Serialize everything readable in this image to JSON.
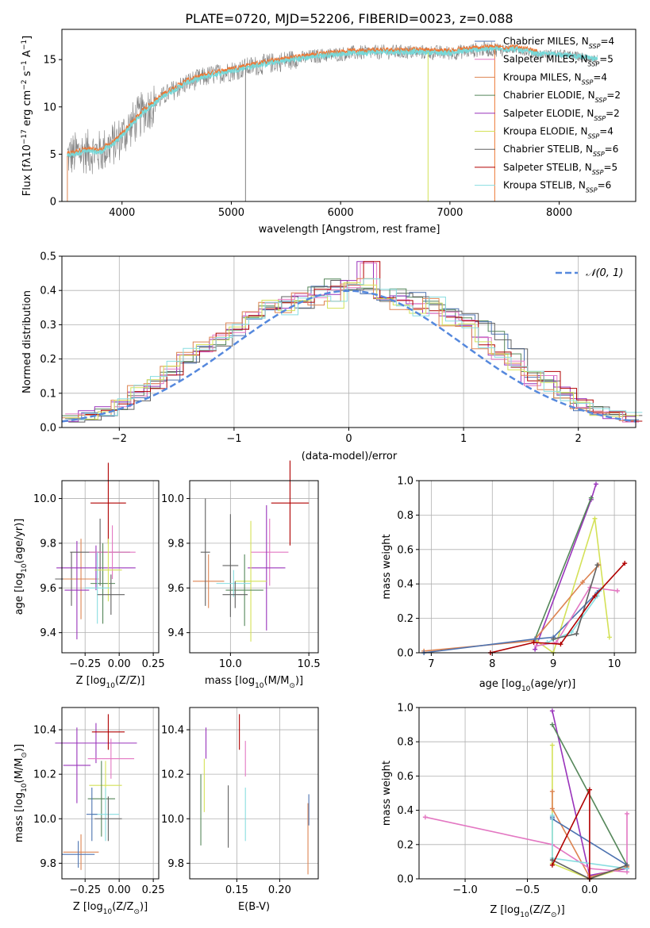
{
  "figure": {
    "title": "PLATE=0720, MJD=52206, FIBERID=0023, z=0.088"
  },
  "legend": [
    {
      "label": "Chabrier MILES, N",
      "sub": "SSP",
      "suffix": "=4",
      "color": "#4c72b0"
    },
    {
      "label": "Salpeter MILES, N",
      "sub": "SSP",
      "suffix": "=5",
      "color": "#e377c2"
    },
    {
      "label": "Kroupa MILES, N",
      "sub": "SSP",
      "suffix": "=4",
      "color": "#dd8452"
    },
    {
      "label": "Chabrier ELODIE, N",
      "sub": "SSP",
      "suffix": "=2",
      "color": "#55875a"
    },
    {
      "label": "Salpeter ELODIE, N",
      "sub": "SSP",
      "suffix": "=2",
      "color": "#9933bb"
    },
    {
      "label": "Kroupa ELODIE, N",
      "sub": "SSP",
      "suffix": "=4",
      "color": "#d4e157"
    },
    {
      "label": "Chabrier STELIB, N",
      "sub": "SSP",
      "suffix": "=6",
      "color": "#606060"
    },
    {
      "label": "Salpeter STELIB, N",
      "sub": "SSP",
      "suffix": "=5",
      "color": "#b00000"
    },
    {
      "label": "Kroupa STELIB, N",
      "sub": "SSP",
      "suffix": "=6",
      "color": "#88dde0"
    }
  ],
  "colors": {
    "spectrum": "#808080",
    "model": "#77d8d8",
    "model_orange": "#ee7733",
    "normal_curve": "#5588dd"
  },
  "chart_data": [
    {
      "id": "spectrum",
      "type": "line",
      "xlabel": "wavelength [Angstrom, rest frame]",
      "ylabel": "Flux [f",
      "xlim": [
        3450,
        8700
      ],
      "ylim": [
        0,
        18.2
      ],
      "xticks": [
        "4000",
        "5000",
        "6000",
        "7000",
        "8000"
      ],
      "yticks": [
        "0",
        "5",
        "10",
        "15"
      ],
      "continuum_knots": [
        [
          3500,
          4.8
        ],
        [
          3650,
          5.3
        ],
        [
          3800,
          5.2
        ],
        [
          3950,
          6.3
        ],
        [
          4050,
          7.6
        ],
        [
          4200,
          9.5
        ],
        [
          4400,
          11.3
        ],
        [
          4600,
          12.6
        ],
        [
          4800,
          13.3
        ],
        [
          5000,
          13.8
        ],
        [
          5200,
          14.3
        ],
        [
          5500,
          14.9
        ],
        [
          5800,
          15.4
        ],
        [
          6100,
          15.7
        ],
        [
          6400,
          15.8
        ],
        [
          6700,
          15.8
        ],
        [
          7000,
          15.7
        ],
        [
          7300,
          16.1
        ],
        [
          7600,
          16.1
        ],
        [
          7800,
          15.6
        ],
        [
          8000,
          15.6
        ],
        [
          8200,
          15.3
        ],
        [
          8350,
          15.0
        ]
      ]
    },
    {
      "id": "residual-histogram",
      "type": "histogram",
      "xlabel": "(data-model)/error",
      "ylabel": "Normed distribution",
      "xlim": [
        -2.5,
        2.5
      ],
      "ylim": [
        0,
        0.5
      ],
      "xticks": [
        "−2",
        "−1",
        "0",
        "1",
        "2"
      ],
      "yticks": [
        "0.0",
        "0.1",
        "0.2",
        "0.3",
        "0.4",
        "0.5"
      ],
      "legend": "𝒩(0, 1)",
      "bin_width": 0.1,
      "series": [
        {
          "values": [
            0.02,
            0.03,
            0.04,
            0.06,
            0.09,
            0.13,
            0.15,
            0.2,
            0.23,
            0.25,
            0.28,
            0.32,
            0.34,
            0.37,
            0.36,
            0.4,
            0.42,
            0.39,
            0.4,
            0.37,
            0.39,
            0.38,
            0.36,
            0.35,
            0.32,
            0.3,
            0.27,
            0.22,
            0.16,
            0.14,
            0.1,
            0.06,
            0.05,
            0.04,
            0.03
          ]
        },
        {
          "values": [
            0.03,
            0.04,
            0.05,
            0.07,
            0.1,
            0.12,
            0.16,
            0.2,
            0.21,
            0.27,
            0.29,
            0.33,
            0.35,
            0.36,
            0.38,
            0.39,
            0.4,
            0.42,
            0.48,
            0.38,
            0.37,
            0.35,
            0.34,
            0.33,
            0.3,
            0.25,
            0.21,
            0.19,
            0.13,
            0.15,
            0.11,
            0.07,
            0.04,
            0.04,
            0.02
          ]
        },
        {
          "values": [
            0.02,
            0.03,
            0.05,
            0.08,
            0.11,
            0.14,
            0.18,
            0.22,
            0.24,
            0.27,
            0.3,
            0.33,
            0.36,
            0.34,
            0.38,
            0.37,
            0.36,
            0.41,
            0.42,
            0.39,
            0.35,
            0.33,
            0.37,
            0.31,
            0.29,
            0.24,
            0.22,
            0.18,
            0.15,
            0.12,
            0.09,
            0.06,
            0.05,
            0.04,
            0.03
          ]
        }
      ]
    },
    {
      "id": "age-vs-Z",
      "type": "errorbar",
      "xlabel": "Z [log",
      "ylabel": "age  [log",
      "xlim": [
        -0.42,
        0.29
      ],
      "ylim": [
        9.31,
        10.08
      ],
      "xticks": [
        "−0.25",
        "0.00",
        "0.25"
      ],
      "yticks": [
        "9.4",
        "9.6",
        "9.8",
        "10.0"
      ],
      "points": [
        {
          "x": -0.35,
          "y": 9.64,
          "xerr": 0.12,
          "yerr": 0.12,
          "color": "#606060"
        },
        {
          "x": -0.28,
          "y": 9.64,
          "xerr": 0.13,
          "yerr": 0.18,
          "color": "#dd8452"
        },
        {
          "x": -0.31,
          "y": 9.59,
          "xerr": 0.09,
          "yerr": 0.22,
          "color": "#9933bb"
        },
        {
          "x": -0.17,
          "y": 9.69,
          "xerr": 0.29,
          "yerr": 0.1,
          "color": "#9933bb"
        },
        {
          "x": -0.08,
          "y": 9.98,
          "xerr": 0.13,
          "yerr": 0.18,
          "color": "#b00000"
        },
        {
          "x": -0.14,
          "y": 9.76,
          "xerr": 0.22,
          "yerr": 0.15,
          "color": "#606060"
        },
        {
          "x": -0.05,
          "y": 9.76,
          "xerr": 0.17,
          "yerr": 0.12,
          "color": "#e377c2"
        },
        {
          "x": -0.12,
          "y": 9.62,
          "xerr": 0.09,
          "yerr": 0.18,
          "color": "#55875a"
        },
        {
          "x": -0.08,
          "y": 9.68,
          "xerr": 0.1,
          "yerr": 0.14,
          "color": "#d4e157"
        },
        {
          "x": -0.16,
          "y": 9.6,
          "xerr": 0.09,
          "yerr": 0.16,
          "color": "#88dde0"
        },
        {
          "x": -0.06,
          "y": 9.57,
          "xerr": 0.1,
          "yerr": 0.09,
          "color": "#606060"
        }
      ]
    },
    {
      "id": "age-vs-mass",
      "type": "errorbar",
      "xlabel": "mass [log",
      "ylabel": "",
      "xlim": [
        9.74,
        10.56
      ],
      "ylim": [
        9.31,
        10.08
      ],
      "xticks": [
        "10.0",
        "10.5"
      ],
      "yticks": [
        "9.4",
        "9.6",
        "9.8",
        "10.0"
      ],
      "points": [
        {
          "x": 9.86,
          "y": 9.63,
          "xerr": 0.1,
          "yerr": 0.12,
          "color": "#dd8452"
        },
        {
          "x": 9.84,
          "y": 9.76,
          "xerr": 0.03,
          "yerr": 0.24,
          "color": "#606060"
        },
        {
          "x": 10.0,
          "y": 9.7,
          "xerr": 0.05,
          "yerr": 0.23,
          "color": "#606060"
        },
        {
          "x": 10.38,
          "y": 9.98,
          "xerr": 0.12,
          "yerr": 0.19,
          "color": "#b00000"
        },
        {
          "x": 10.25,
          "y": 9.76,
          "xerr": 0.12,
          "yerr": 0.15,
          "color": "#e377c2"
        },
        {
          "x": 10.23,
          "y": 9.69,
          "xerr": 0.12,
          "yerr": 0.28,
          "color": "#9933bb"
        },
        {
          "x": 10.13,
          "y": 9.63,
          "xerr": 0.1,
          "yerr": 0.27,
          "color": "#d4e157"
        },
        {
          "x": 10.09,
          "y": 9.59,
          "xerr": 0.12,
          "yerr": 0.16,
          "color": "#55875a"
        },
        {
          "x": 10.02,
          "y": 9.62,
          "xerr": 0.11,
          "yerr": 0.06,
          "color": "#88dde0"
        },
        {
          "x": 10.03,
          "y": 9.57,
          "xerr": 0.08,
          "yerr": 0.06,
          "color": "#606060"
        }
      ]
    },
    {
      "id": "weight-vs-age",
      "type": "line",
      "xlabel": "age  [log",
      "ylabel": "mass weight",
      "xlim": [
        6.8,
        10.35
      ],
      "ylim": [
        0,
        1
      ],
      "xticks": [
        "7",
        "8",
        "9",
        "10"
      ],
      "yticks": [
        "0.0",
        "0.2",
        "0.4",
        "0.6",
        "0.8",
        "1.0"
      ],
      "series": [
        {
          "color": "#9933bb",
          "x": [
            8.7,
            9.62,
            9.7
          ],
          "y": [
            0.02,
            0.89,
            0.98
          ]
        },
        {
          "color": "#55875a",
          "x": [
            8.7,
            9.62
          ],
          "y": [
            0.08,
            0.9
          ]
        },
        {
          "color": "#d4e157",
          "x": [
            8.72,
            9.0,
            9.68,
            9.92
          ],
          "y": [
            0.07,
            0.0,
            0.78,
            0.09
          ]
        },
        {
          "color": "#dd8452",
          "x": [
            6.88,
            8.68,
            9.48,
            9.74
          ],
          "y": [
            0.01,
            0.07,
            0.41,
            0.51
          ]
        },
        {
          "color": "#4c72b0",
          "x": [
            6.88,
            8.7,
            9.0,
            9.72,
            9.75
          ],
          "y": [
            0.0,
            0.08,
            0.09,
            0.35,
            0.36
          ]
        },
        {
          "color": "#e377c2",
          "x": [
            8.72,
            9.05,
            9.6,
            10.05
          ],
          "y": [
            0.04,
            0.06,
            0.38,
            0.36
          ]
        },
        {
          "color": "#88dde0",
          "x": [
            8.9,
            9.3,
            9.72,
            9.78
          ],
          "y": [
            0.06,
            0.12,
            0.33,
            0.37
          ]
        },
        {
          "color": "#606060",
          "x": [
            9.0,
            9.38,
            9.72
          ],
          "y": [
            0.08,
            0.11,
            0.51
          ]
        },
        {
          "color": "#b00000",
          "x": [
            7.97,
            8.68,
            9.12,
            9.68,
            10.17
          ],
          "y": [
            0.0,
            0.06,
            0.05,
            0.33,
            0.52
          ]
        }
      ]
    },
    {
      "id": "mass-vs-Z",
      "type": "errorbar",
      "xlabel": "Z [log",
      "ylabel": "mass [log",
      "xlim": [
        -0.42,
        0.29
      ],
      "ylim": [
        9.73,
        10.5
      ],
      "xticks": [
        "−0.25",
        "0.00",
        "0.25"
      ],
      "yticks": [
        "9.8",
        "10.0",
        "10.2",
        "10.4"
      ],
      "points": [
        {
          "x": -0.28,
          "y": 9.85,
          "xerr": 0.13,
          "yerr": 0.08,
          "color": "#dd8452"
        },
        {
          "x": -0.3,
          "y": 9.84,
          "xerr": 0.12,
          "yerr": 0.06,
          "color": "#4c72b0"
        },
        {
          "x": -0.31,
          "y": 10.24,
          "xerr": 0.1,
          "yerr": 0.17,
          "color": "#9933bb"
        },
        {
          "x": -0.17,
          "y": 10.34,
          "xerr": 0.3,
          "yerr": 0.09,
          "color": "#9933bb"
        },
        {
          "x": -0.08,
          "y": 10.39,
          "xerr": 0.12,
          "yerr": 0.08,
          "color": "#b00000"
        },
        {
          "x": -0.06,
          "y": 10.27,
          "xerr": 0.17,
          "yerr": 0.09,
          "color": "#e377c2"
        },
        {
          "x": -0.1,
          "y": 10.15,
          "xerr": 0.12,
          "yerr": 0.11,
          "color": "#d4e157"
        },
        {
          "x": -0.13,
          "y": 10.09,
          "xerr": 0.1,
          "yerr": 0.17,
          "color": "#55875a"
        },
        {
          "x": -0.1,
          "y": 10.02,
          "xerr": 0.1,
          "yerr": 0.12,
          "color": "#88dde0"
        },
        {
          "x": -0.08,
          "y": 10.0,
          "xerr": 0.1,
          "yerr": 0.1,
          "color": "#606060"
        },
        {
          "x": -0.2,
          "y": 10.02,
          "xerr": 0.04,
          "yerr": 0.12,
          "color": "#4c72b0"
        }
      ]
    },
    {
      "id": "mass-vs-EBV",
      "type": "errorbar",
      "xlabel": "E(B-V)",
      "ylabel": "",
      "xlim": [
        0.095,
        0.245
      ],
      "ylim": [
        9.73,
        10.5
      ],
      "xticks": [
        "0.15",
        "0.20"
      ],
      "yticks": [
        "9.8",
        "10.0",
        "10.2",
        "10.4"
      ],
      "points": [
        {
          "x": 0.108,
          "y": 10.04,
          "xerr": 0,
          "yerr": 0.16,
          "color": "#55875a"
        },
        {
          "x": 0.112,
          "y": 10.15,
          "xerr": 0,
          "yerr": 0.12,
          "color": "#d4e157"
        },
        {
          "x": 0.114,
          "y": 10.34,
          "xerr": 0,
          "yerr": 0.07,
          "color": "#9933bb"
        },
        {
          "x": 0.14,
          "y": 10.01,
          "xerr": 0,
          "yerr": 0.14,
          "color": "#606060"
        },
        {
          "x": 0.153,
          "y": 10.39,
          "xerr": 0,
          "yerr": 0.08,
          "color": "#b00000"
        },
        {
          "x": 0.16,
          "y": 10.27,
          "xerr": 0,
          "yerr": 0.08,
          "color": "#e377c2"
        },
        {
          "x": 0.16,
          "y": 10.02,
          "xerr": 0,
          "yerr": 0.12,
          "color": "#88dde0"
        },
        {
          "x": 0.233,
          "y": 9.91,
          "xerr": 0,
          "yerr": 0.16,
          "color": "#dd8452"
        },
        {
          "x": 0.234,
          "y": 10.04,
          "xerr": 0,
          "yerr": 0.07,
          "color": "#4c72b0"
        }
      ]
    },
    {
      "id": "weight-vs-Z",
      "type": "line",
      "xlabel": "Z [log",
      "ylabel": "mass weight",
      "xlim": [
        -1.37,
        0.37
      ],
      "ylim": [
        0,
        1
      ],
      "xticks": [
        "−1.0",
        "−0.5",
        "0.0"
      ],
      "yticks": [
        "0.0",
        "0.2",
        "0.4",
        "0.6",
        "0.8",
        "1.0"
      ],
      "series": [
        {
          "color": "#9933bb",
          "x": [
            -0.3,
            0.0,
            0.3
          ],
          "y": [
            0.98,
            0.02,
            0.06
          ]
        },
        {
          "color": "#55875a",
          "x": [
            -0.3,
            0.3
          ],
          "y": [
            0.9,
            0.08
          ]
        },
        {
          "color": "#d4e157",
          "x": [
            -0.3,
            -0.3,
            0.0,
            0.3
          ],
          "y": [
            0.78,
            0.09,
            0.0,
            0.07
          ]
        },
        {
          "color": "#dd8452",
          "x": [
            -0.3,
            -0.3,
            0.0,
            0.3
          ],
          "y": [
            0.51,
            0.41,
            0.01,
            0.07
          ]
        },
        {
          "color": "#e377c2",
          "x": [
            -1.32,
            -0.3,
            0.0,
            0.3,
            0.3
          ],
          "y": [
            0.36,
            0.2,
            0.06,
            0.04,
            0.38
          ]
        },
        {
          "color": "#4c72b0",
          "x": [
            -0.3,
            -0.3,
            0.3
          ],
          "y": [
            0.36,
            0.35,
            0.08
          ]
        },
        {
          "color": "#88dde0",
          "x": [
            -0.3,
            -0.3,
            0.3
          ],
          "y": [
            0.37,
            0.12,
            0.06
          ]
        },
        {
          "color": "#606060",
          "x": [
            -0.3,
            0.0,
            0.3
          ],
          "y": [
            0.11,
            0.0,
            0.08
          ]
        },
        {
          "color": "#b00000",
          "x": [
            -0.3,
            0.0,
            0.0
          ],
          "y": [
            0.08,
            0.52,
            0.0
          ]
        }
      ]
    }
  ]
}
